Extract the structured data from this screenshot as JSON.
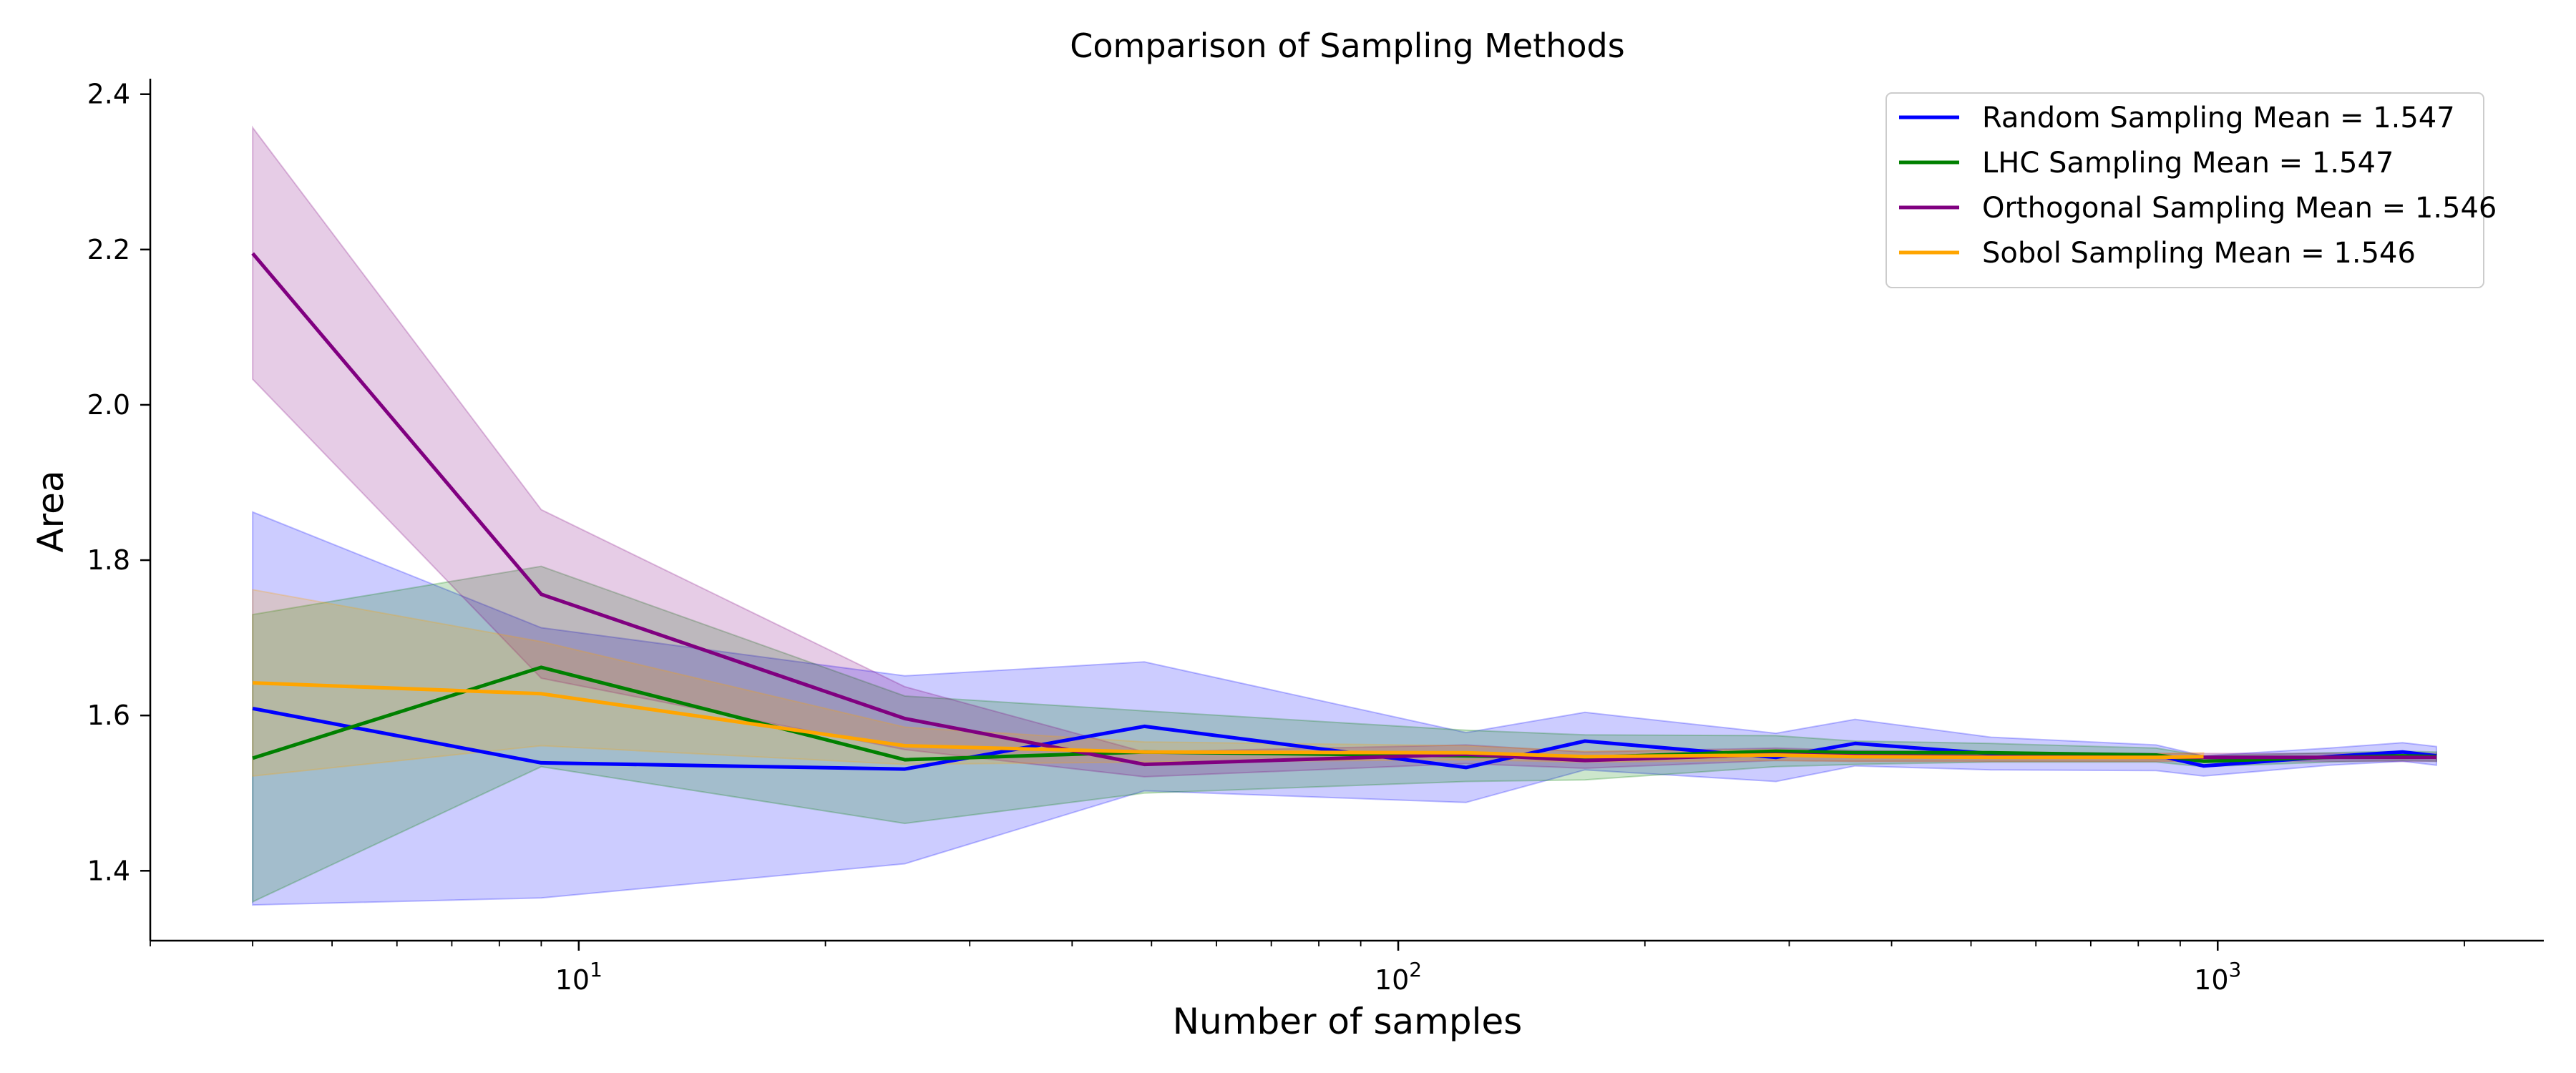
{
  "chart_data": {
    "type": "line",
    "title": "Comparison of Sampling Methods",
    "xlabel": "Number of samples",
    "ylabel": "Area",
    "xscale": "log",
    "xlim": [
      3,
      2500
    ],
    "ylim": [
      1.31,
      2.42
    ],
    "x_ticks": [
      {
        "value": 10,
        "base": "10",
        "exp": "1"
      },
      {
        "value": 100,
        "base": "10",
        "exp": "2"
      },
      {
        "value": 1000,
        "base": "10",
        "exp": "3"
      }
    ],
    "y_ticks": [
      1.4,
      1.6,
      1.8,
      2.0,
      2.2,
      2.4
    ],
    "y_tick_labels": [
      "1.4",
      "1.6",
      "1.8",
      "2.0",
      "2.2",
      "2.4"
    ],
    "grid": false,
    "legend_position": "top-right",
    "x": [
      4,
      9,
      25,
      49,
      121,
      169,
      289,
      361,
      529,
      841,
      961,
      1369,
      1681,
      1849
    ],
    "series": [
      {
        "name": "Random Sampling Mean = 1.547",
        "color": "#0000ff",
        "values": [
          1.609,
          1.539,
          1.531,
          1.586,
          1.533,
          1.567,
          1.546,
          1.564,
          1.551,
          1.549,
          1.535,
          1.547,
          1.553,
          1.548
        ],
        "lower": [
          1.356,
          1.365,
          1.409,
          1.503,
          1.488,
          1.53,
          1.515,
          1.535,
          1.53,
          1.529,
          1.522,
          1.536,
          1.541,
          1.536
        ],
        "upper": [
          1.862,
          1.713,
          1.651,
          1.669,
          1.578,
          1.604,
          1.577,
          1.595,
          1.572,
          1.562,
          1.548,
          1.558,
          1.565,
          1.56
        ]
      },
      {
        "name": "LHC Sampling Mean = 1.547",
        "color": "#008000",
        "values": [
          1.545,
          1.662,
          1.543,
          1.553,
          1.548,
          1.546,
          1.554,
          1.552,
          1.552,
          1.549,
          1.541,
          1.546,
          1.548,
          1.547
        ],
        "lower": [
          1.36,
          1.534,
          1.461,
          1.5,
          1.515,
          1.517,
          1.534,
          1.537,
          1.54,
          1.54,
          1.534,
          1.54,
          1.542,
          1.541
        ],
        "upper": [
          1.73,
          1.792,
          1.625,
          1.606,
          1.581,
          1.575,
          1.574,
          1.567,
          1.564,
          1.558,
          1.548,
          1.552,
          1.554,
          1.553
        ]
      },
      {
        "name": "Orthogonal Sampling Mean = 1.546",
        "color": "#800080",
        "values": [
          2.195,
          1.756,
          1.596,
          1.537,
          1.55,
          1.542,
          1.55,
          1.548,
          1.547,
          1.546,
          1.546,
          1.546,
          1.546,
          1.546
        ],
        "lower": [
          2.033,
          1.648,
          1.556,
          1.521,
          1.538,
          1.532,
          1.542,
          1.541,
          1.541,
          1.541,
          1.541,
          1.541,
          1.541,
          1.541
        ],
        "upper": [
          2.357,
          1.865,
          1.637,
          1.553,
          1.562,
          1.553,
          1.558,
          1.555,
          1.553,
          1.551,
          1.551,
          1.551,
          1.551,
          1.551
        ]
      },
      {
        "name": "Sobol Sampling Mean = 1.546",
        "color": "#ffa500",
        "values": [
          1.642,
          1.628,
          1.561,
          1.553,
          1.552,
          1.547,
          1.549,
          1.547,
          1.546,
          1.546,
          1.547,
          null,
          null,
          null
        ],
        "lower": [
          1.522,
          1.561,
          1.537,
          1.54,
          1.543,
          1.54,
          1.542,
          1.541,
          1.541,
          1.541,
          1.542,
          null,
          null,
          null
        ],
        "upper": [
          1.762,
          1.695,
          1.585,
          1.566,
          1.561,
          1.554,
          1.556,
          1.553,
          1.551,
          1.551,
          1.552,
          null,
          null,
          null
        ]
      }
    ]
  }
}
